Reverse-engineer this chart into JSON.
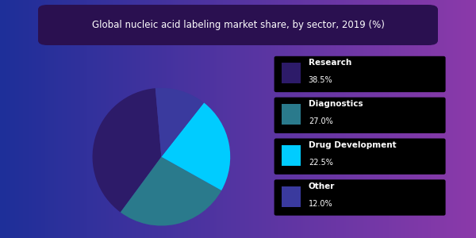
{
  "title": "Global nucleic acid labeling market share, by sector, 2019 (%)",
  "slices": [
    {
      "label": "Research",
      "value": 38.5,
      "color": "#2d1b69"
    },
    {
      "label": "Diagnostics",
      "value": 27.0,
      "color": "#2a7a8c"
    },
    {
      "label": "Drug Development",
      "value": 22.5,
      "color": "#00ccff"
    },
    {
      "label": "Other",
      "value": 12.0,
      "color": "#3a3a9e"
    }
  ],
  "bg_color_left": "#1e2f99",
  "bg_color_right": "#8b3aaa",
  "title_bg_color": "#2a1050",
  "title_color": "#ffffff",
  "title_fontsize": 8.5,
  "legend_bg_color": "#000000",
  "legend_text_color": "#ffffff",
  "figsize": [
    6.0,
    3.0
  ],
  "dpi": 100,
  "startangle": 95
}
